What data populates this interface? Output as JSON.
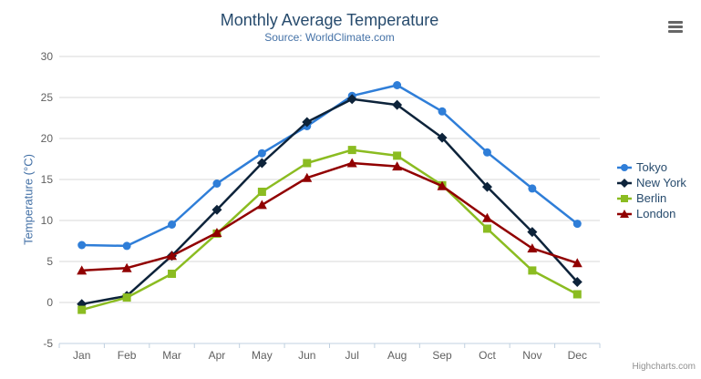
{
  "credits_label": "Highcharts.com",
  "icons": {
    "context_menu": "hamburger-menu-icon"
  },
  "axis_colors": {
    "grid_line": "#d8d8d8",
    "axis_line": "#c0d0e0",
    "tick": "#c0d0e0",
    "label": "#606060"
  },
  "chart_data": {
    "type": "line",
    "title": "Monthly Average Temperature",
    "subtitle": "Source: WorldClimate.com",
    "xlabel": "",
    "ylabel": "Temperature (°C)",
    "categories": [
      "Jan",
      "Feb",
      "Mar",
      "Apr",
      "May",
      "Jun",
      "Jul",
      "Aug",
      "Sep",
      "Oct",
      "Nov",
      "Dec"
    ],
    "yticks": [
      -5,
      0,
      5,
      10,
      15,
      20,
      25,
      30
    ],
    "ylim": [
      -5,
      30
    ],
    "grid": true,
    "legend_position": "right",
    "series": [
      {
        "name": "Tokyo",
        "color": "#2f7ed8",
        "marker": "circle",
        "values": [
          7.0,
          6.9,
          9.5,
          14.5,
          18.2,
          21.5,
          25.2,
          26.5,
          23.3,
          18.3,
          13.9,
          9.6
        ]
      },
      {
        "name": "New York",
        "color": "#0d233a",
        "marker": "diamond",
        "values": [
          -0.2,
          0.8,
          5.7,
          11.3,
          17.0,
          22.0,
          24.8,
          24.1,
          20.1,
          14.1,
          8.6,
          2.5
        ]
      },
      {
        "name": "Berlin",
        "color": "#8bbc21",
        "marker": "square",
        "values": [
          -0.9,
          0.6,
          3.5,
          8.4,
          13.5,
          17.0,
          18.6,
          17.9,
          14.3,
          9.0,
          3.9,
          1.0
        ]
      },
      {
        "name": "London",
        "color": "#910000",
        "marker": "triangle",
        "values": [
          3.9,
          4.2,
          5.7,
          8.5,
          11.9,
          15.2,
          17.0,
          16.6,
          14.2,
          10.3,
          6.6,
          4.8
        ]
      }
    ]
  }
}
